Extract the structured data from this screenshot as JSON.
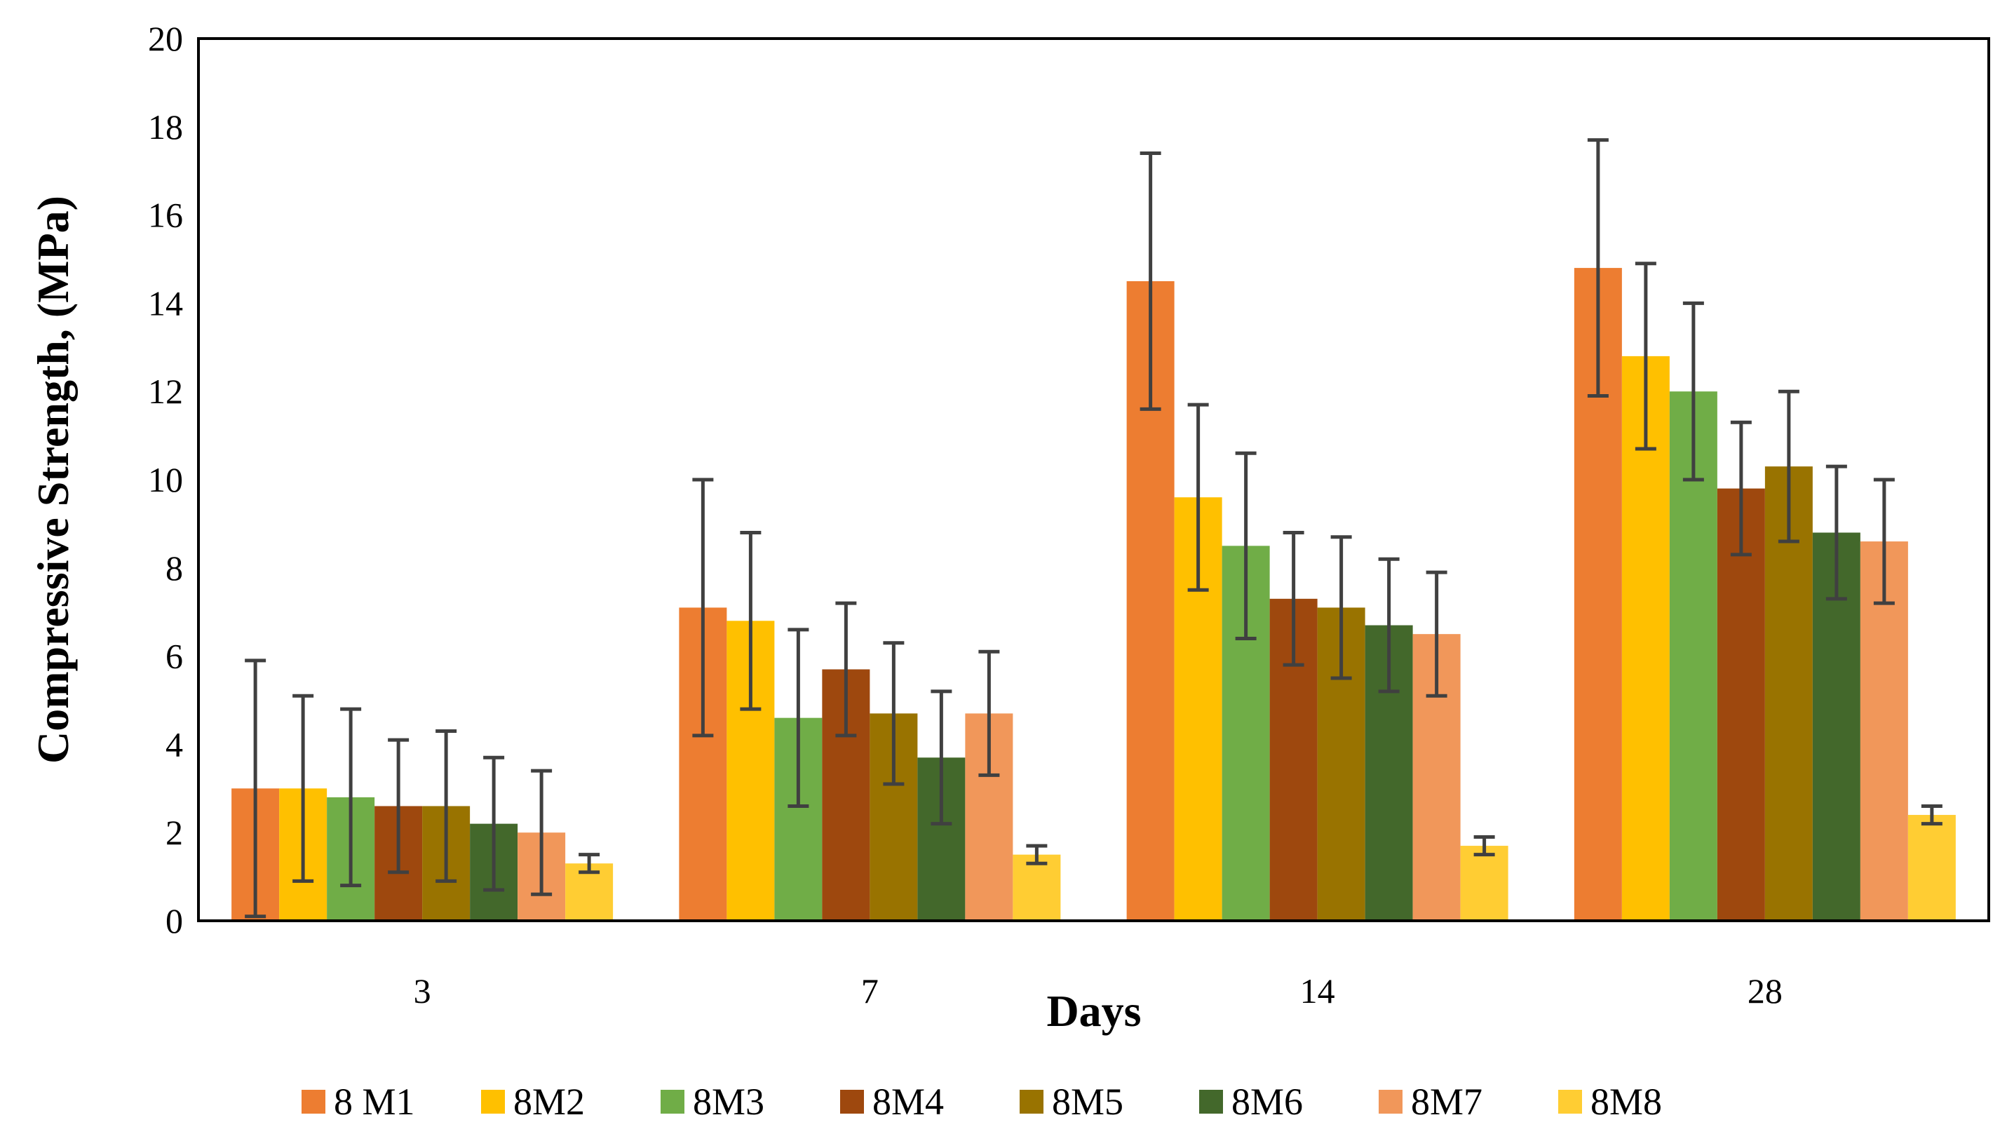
{
  "chart_data": {
    "type": "bar",
    "title": "",
    "xlabel": "Days",
    "ylabel": "Compressive Strength, (MPa)",
    "ylim": [
      0,
      20
    ],
    "yticks": [
      0,
      2,
      4,
      6,
      8,
      10,
      12,
      14,
      16,
      18,
      20
    ],
    "categories": [
      "3",
      "7",
      "14",
      "28"
    ],
    "legend_position": "bottom",
    "series": [
      {
        "name": "8 M1",
        "color": "#ED7D31",
        "values": [
          3.0,
          7.1,
          14.5,
          14.8
        ],
        "err": [
          2.9,
          2.9,
          2.9,
          2.9
        ]
      },
      {
        "name": "8M2",
        "color": "#FFC000",
        "values": [
          3.0,
          6.8,
          9.6,
          12.8
        ],
        "err": [
          2.1,
          2.0,
          2.1,
          2.1
        ]
      },
      {
        "name": "8M3",
        "color": "#70AD47",
        "values": [
          2.8,
          4.6,
          8.5,
          12.0
        ],
        "err": [
          2.0,
          2.0,
          2.1,
          2.0
        ]
      },
      {
        "name": "8M4",
        "color": "#9E480E",
        "values": [
          2.6,
          5.7,
          7.3,
          9.8
        ],
        "err": [
          1.5,
          1.5,
          1.5,
          1.5
        ]
      },
      {
        "name": "8M5",
        "color": "#997300",
        "values": [
          2.6,
          4.7,
          7.1,
          10.3
        ],
        "err": [
          1.7,
          1.6,
          1.6,
          1.7
        ]
      },
      {
        "name": "8M6",
        "color": "#43682B",
        "values": [
          2.2,
          3.7,
          6.7,
          8.8
        ],
        "err": [
          1.5,
          1.5,
          1.5,
          1.5
        ]
      },
      {
        "name": "8M7",
        "color": "#F1975A",
        "values": [
          2.0,
          4.7,
          6.5,
          8.6
        ],
        "err": [
          1.4,
          1.4,
          1.4,
          1.4
        ]
      },
      {
        "name": "8M8",
        "color": "#FFCD33",
        "values": [
          1.3,
          1.5,
          1.7,
          2.4
        ],
        "err": [
          0.2,
          0.2,
          0.2,
          0.2
        ]
      }
    ]
  }
}
